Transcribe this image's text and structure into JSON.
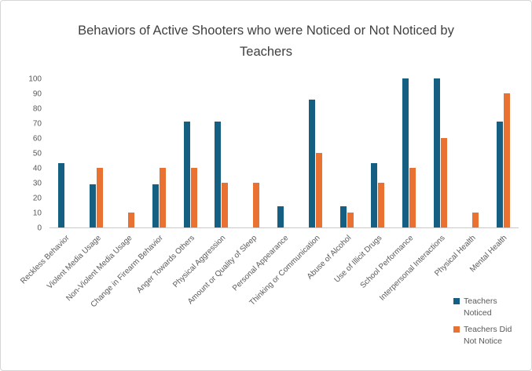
{
  "chart_data": {
    "type": "bar",
    "title": "Behaviors of Active Shooters who were Noticed or Not Noticed by Teachers",
    "categories": [
      "Reckless Behavior",
      "Violent Media Usage",
      "Non-Violent Media Usage",
      "Change in Firearm Behavior",
      "Anger Towards Others",
      "Physical Aggression",
      "Amount or Quality of Sleep",
      "Personal Appearance",
      "Thinking or Communication",
      "Abuse of Alcohol",
      "Use of Illicit Drugs",
      "School Performance",
      "Interpersonal Interactions",
      "Physical Health",
      "Mental Health"
    ],
    "series": [
      {
        "name": "Teachers Noticed",
        "color": "#156082",
        "values": [
          43,
          29,
          0,
          29,
          71,
          71,
          0,
          14,
          86,
          14,
          43,
          100,
          100,
          0,
          71
        ]
      },
      {
        "name": "Teachers Did Not Notice",
        "color": "#E97132",
        "values": [
          0,
          40,
          10,
          40,
          40,
          30,
          30,
          0,
          50,
          10,
          30,
          40,
          60,
          10,
          90
        ]
      }
    ],
    "xlabel": "",
    "ylabel": "",
    "ylim": [
      0,
      100
    ],
    "ytick_step": 10,
    "grid": false,
    "legend_position": "bottom-right",
    "x_label_rotation_deg": 45
  }
}
